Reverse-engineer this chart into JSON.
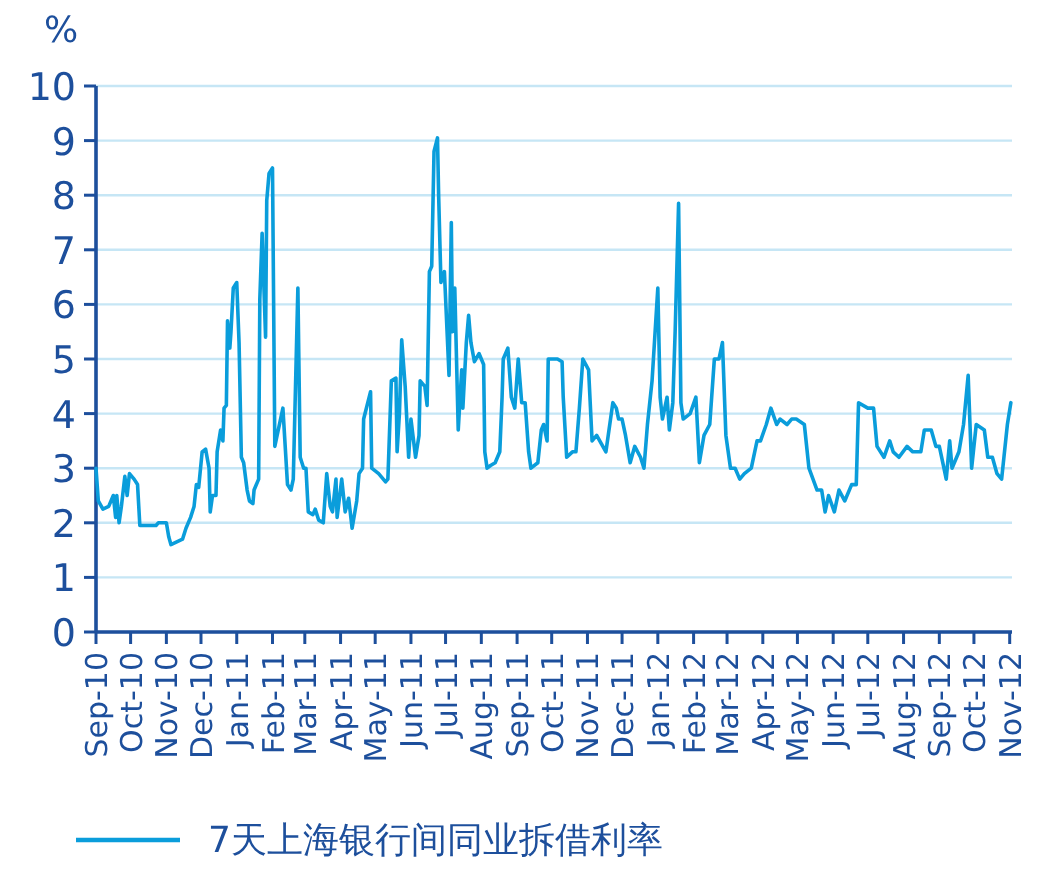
{
  "chart_data": {
    "type": "line",
    "ylabel": "%",
    "grid": "y",
    "legend": "bottom",
    "ylim": [
      0,
      10
    ],
    "yticks": [
      0,
      1,
      2,
      3,
      4,
      5,
      6,
      7,
      8,
      9,
      10
    ],
    "xlim": [
      "2010-09-01",
      "2012-11-03"
    ],
    "xticks": [
      {
        "value": "2010-09-01",
        "label": "Sep-10"
      },
      {
        "value": "2010-10-01",
        "label": "Oct-10"
      },
      {
        "value": "2010-11-01",
        "label": "Nov-10"
      },
      {
        "value": "2010-12-01",
        "label": "Dec-10"
      },
      {
        "value": "2011-01-01",
        "label": "Jan-11"
      },
      {
        "value": "2011-02-01",
        "label": "Feb-11"
      },
      {
        "value": "2011-03-01",
        "label": "Mar-11"
      },
      {
        "value": "2011-04-01",
        "label": "Apr-11"
      },
      {
        "value": "2011-05-01",
        "label": "May-11"
      },
      {
        "value": "2011-06-01",
        "label": "Jun-11"
      },
      {
        "value": "2011-07-01",
        "label": "Jul-11"
      },
      {
        "value": "2011-08-01",
        "label": "Aug-11"
      },
      {
        "value": "2011-09-01",
        "label": "Sep-11"
      },
      {
        "value": "2011-10-01",
        "label": "Oct-11"
      },
      {
        "value": "2011-11-01",
        "label": "Nov-11"
      },
      {
        "value": "2011-12-01",
        "label": "Dec-11"
      },
      {
        "value": "2012-01-01",
        "label": "Jan-12"
      },
      {
        "value": "2012-02-01",
        "label": "Feb-12"
      },
      {
        "value": "2012-03-01",
        "label": "Mar-12"
      },
      {
        "value": "2012-04-01",
        "label": "Apr-12"
      },
      {
        "value": "2012-05-01",
        "label": "May-12"
      },
      {
        "value": "2012-06-01",
        "label": "Jun-12"
      },
      {
        "value": "2012-07-01",
        "label": "Jul-12"
      },
      {
        "value": "2012-08-01",
        "label": "Aug-12"
      },
      {
        "value": "2012-09-01",
        "label": "Sep-12"
      },
      {
        "value": "2012-10-01",
        "label": "Oct-12"
      },
      {
        "value": "2012-11-01",
        "label": "Nov-12"
      }
    ],
    "x": [
      "2010-09-01",
      "2010-09-03",
      "2010-09-07",
      "2010-09-12",
      "2010-09-16",
      "2010-09-18",
      "2010-09-19",
      "2010-09-21",
      "2010-09-23",
      "2010-09-26",
      "2010-09-28",
      "2010-09-30",
      "2010-10-04",
      "2010-10-07",
      "2010-10-09",
      "2010-10-23",
      "2010-10-25",
      "2010-11-01",
      "2010-11-03",
      "2010-11-05",
      "2010-11-10",
      "2010-11-15",
      "2010-11-18",
      "2010-11-22",
      "2010-11-25",
      "2010-11-27",
      "2010-11-29",
      "2010-12-02",
      "2010-12-05",
      "2010-12-08",
      "2010-12-09",
      "2010-12-11",
      "2010-12-14",
      "2010-12-15",
      "2010-12-18",
      "2010-12-20",
      "2010-12-21",
      "2010-12-23",
      "2010-12-24",
      "2010-12-26",
      "2010-12-27",
      "2010-12-29",
      "2011-01-01",
      "2011-01-03",
      "2011-01-05",
      "2011-01-07",
      "2011-01-10",
      "2011-01-12",
      "2011-01-15",
      "2011-01-16",
      "2011-01-20",
      "2011-01-21",
      "2011-01-23",
      "2011-01-26",
      "2011-01-27",
      "2011-01-29",
      "2011-02-01",
      "2011-02-03",
      "2011-02-05",
      "2011-02-10",
      "2011-02-14",
      "2011-02-17",
      "2011-02-19",
      "2011-02-23",
      "2011-02-25",
      "2011-02-28",
      "2011-03-02",
      "2011-03-04",
      "2011-03-08",
      "2011-03-10",
      "2011-03-13",
      "2011-03-17",
      "2011-03-20",
      "2011-03-23",
      "2011-03-25",
      "2011-03-28",
      "2011-03-29",
      "2011-04-02",
      "2011-04-05",
      "2011-04-08",
      "2011-04-11",
      "2011-04-15",
      "2011-04-17",
      "2011-04-20",
      "2011-04-21",
      "2011-04-27",
      "2011-04-28",
      "2011-05-04",
      "2011-05-08",
      "2011-05-10",
      "2011-05-12",
      "2011-05-15",
      "2011-05-19",
      "2011-05-20",
      "2011-05-22",
      "2011-05-24",
      "2011-05-27",
      "2011-05-30",
      "2011-06-01",
      "2011-06-05",
      "2011-06-08",
      "2011-06-09",
      "2011-06-13",
      "2011-06-15",
      "2011-06-17",
      "2011-06-19",
      "2011-06-21",
      "2011-06-24",
      "2011-06-25",
      "2011-06-27",
      "2011-06-30",
      "2011-07-04",
      "2011-07-06",
      "2011-07-07",
      "2011-07-09",
      "2011-07-12",
      "2011-07-15",
      "2011-07-16",
      "2011-07-19",
      "2011-07-21",
      "2011-07-23",
      "2011-07-26",
      "2011-07-30",
      "2011-08-03",
      "2011-08-04",
      "2011-08-06",
      "2011-08-09",
      "2011-08-13",
      "2011-08-17",
      "2011-08-19",
      "2011-08-20",
      "2011-08-24",
      "2011-08-27",
      "2011-08-30",
      "2011-09-02",
      "2011-09-05",
      "2011-09-08",
      "2011-09-11",
      "2011-09-13",
      "2011-09-19",
      "2011-09-22",
      "2011-09-24",
      "2011-09-27",
      "2011-09-28",
      "2011-10-06",
      "2011-10-10",
      "2011-10-11",
      "2011-10-14",
      "2011-10-19",
      "2011-10-22",
      "2011-10-25",
      "2011-10-28",
      "2011-11-02",
      "2011-11-05",
      "2011-11-09",
      "2011-11-17",
      "2011-11-23",
      "2011-11-26",
      "2011-11-28",
      "2011-12-01",
      "2011-12-04",
      "2011-12-08",
      "2011-12-12",
      "2011-12-17",
      "2011-12-20",
      "2011-12-23",
      "2011-12-27",
      "2012-01-01",
      "2012-01-03",
      "2012-01-05",
      "2012-01-09",
      "2012-01-11",
      "2012-01-14",
      "2012-01-16",
      "2012-01-19",
      "2012-01-21",
      "2012-01-23",
      "2012-01-29",
      "2012-02-03",
      "2012-02-06",
      "2012-02-10",
      "2012-02-15",
      "2012-02-19",
      "2012-02-23",
      "2012-02-26",
      "2012-02-29",
      "2012-03-04",
      "2012-03-08",
      "2012-03-12",
      "2012-03-16",
      "2012-03-22",
      "2012-03-27",
      "2012-03-30",
      "2012-04-04",
      "2012-04-08",
      "2012-04-13",
      "2012-04-16",
      "2012-04-22",
      "2012-04-26",
      "2012-04-30",
      "2012-05-07",
      "2012-05-11",
      "2012-05-18",
      "2012-05-22",
      "2012-05-25",
      "2012-05-28",
      "2012-06-02",
      "2012-06-06",
      "2012-06-11",
      "2012-06-17",
      "2012-06-21",
      "2012-06-23",
      "2012-07-01",
      "2012-07-06",
      "2012-07-09",
      "2012-07-15",
      "2012-07-20",
      "2012-07-23",
      "2012-07-28",
      "2012-08-04",
      "2012-08-09",
      "2012-08-16",
      "2012-08-19",
      "2012-08-25",
      "2012-08-29",
      "2012-09-01",
      "2012-09-04",
      "2012-09-07",
      "2012-09-10",
      "2012-09-12",
      "2012-09-18",
      "2012-09-22",
      "2012-09-26",
      "2012-09-29",
      "2012-10-03",
      "2012-10-10",
      "2012-10-13",
      "2012-10-17",
      "2012-10-21",
      "2012-10-25",
      "2012-10-30",
      "2012-11-02"
    ],
    "series": [
      {
        "name": "7天上海银行间同业拆借利率",
        "color": "#0a9ddb",
        "values": [
          3.0,
          2.4,
          2.25,
          2.3,
          2.5,
          2.1,
          2.5,
          2.0,
          2.3,
          2.85,
          2.5,
          2.9,
          2.8,
          2.7,
          1.95,
          1.95,
          2.0,
          2.0,
          1.75,
          1.6,
          1.65,
          1.7,
          1.9,
          2.1,
          2.3,
          2.7,
          2.65,
          3.3,
          3.35,
          3.0,
          2.2,
          2.5,
          2.5,
          3.3,
          3.7,
          3.5,
          4.1,
          4.15,
          5.7,
          5.2,
          5.5,
          6.3,
          6.4,
          5.3,
          3.2,
          3.1,
          2.6,
          2.4,
          2.35,
          2.6,
          2.8,
          6.1,
          7.3,
          5.4,
          7.9,
          8.4,
          8.5,
          3.4,
          3.6,
          4.1,
          2.7,
          2.6,
          2.8,
          6.3,
          3.2,
          3.0,
          3.0,
          2.2,
          2.15,
          2.25,
          2.05,
          2.0,
          2.9,
          2.3,
          2.2,
          2.8,
          2.1,
          2.8,
          2.2,
          2.45,
          1.9,
          2.4,
          2.9,
          3.0,
          3.9,
          4.4,
          3.0,
          2.9,
          2.8,
          2.75,
          2.8,
          4.6,
          4.65,
          3.3,
          4.0,
          5.35,
          4.5,
          3.2,
          3.9,
          3.2,
          3.6,
          4.6,
          4.5,
          4.15,
          6.6,
          6.7,
          8.8,
          9.05,
          8.0,
          6.4,
          6.6,
          4.7,
          7.5,
          5.5,
          6.3,
          3.7,
          4.8,
          4.1,
          5.3,
          5.8,
          5.3,
          4.95,
          5.1,
          4.9,
          3.3,
          3.0,
          3.05,
          3.1,
          3.3,
          4.3,
          5.0,
          5.2,
          4.3,
          4.1,
          5.0,
          4.2,
          4.2,
          3.3,
          3.0,
          3.1,
          3.7,
          3.8,
          3.5,
          5.0,
          5.0,
          4.95,
          4.3,
          3.2,
          3.3,
          3.3,
          4.1,
          5.0,
          4.8,
          3.5,
          3.6,
          3.3,
          4.2,
          4.1,
          3.9,
          3.9,
          3.6,
          3.1,
          3.4,
          3.2,
          3.0,
          3.8,
          4.6,
          6.3,
          4.3,
          3.9,
          4.3,
          3.7,
          4.2,
          5.5,
          7.85,
          4.2,
          3.9,
          4.0,
          4.3,
          3.1,
          3.6,
          3.8,
          5.0,
          5.0,
          5.3,
          3.6,
          3.0,
          3.0,
          2.8,
          2.9,
          3.0,
          3.5,
          3.5,
          3.8,
          4.1,
          3.8,
          3.9,
          3.8,
          3.9,
          3.9,
          3.8,
          3.0,
          2.6,
          2.6,
          2.2,
          2.5,
          2.2,
          2.6,
          2.4,
          2.7,
          2.7,
          4.2,
          4.1,
          4.1,
          3.4,
          3.2,
          3.5,
          3.3,
          3.2,
          3.4,
          3.3,
          3.3,
          3.7,
          3.7,
          3.4,
          3.4,
          3.1,
          2.8,
          3.5,
          3.0,
          3.3,
          3.8,
          4.7,
          3.0,
          3.8,
          3.7,
          3.2,
          3.2,
          2.9,
          2.8,
          3.8,
          4.2
        ]
      }
    ]
  }
}
